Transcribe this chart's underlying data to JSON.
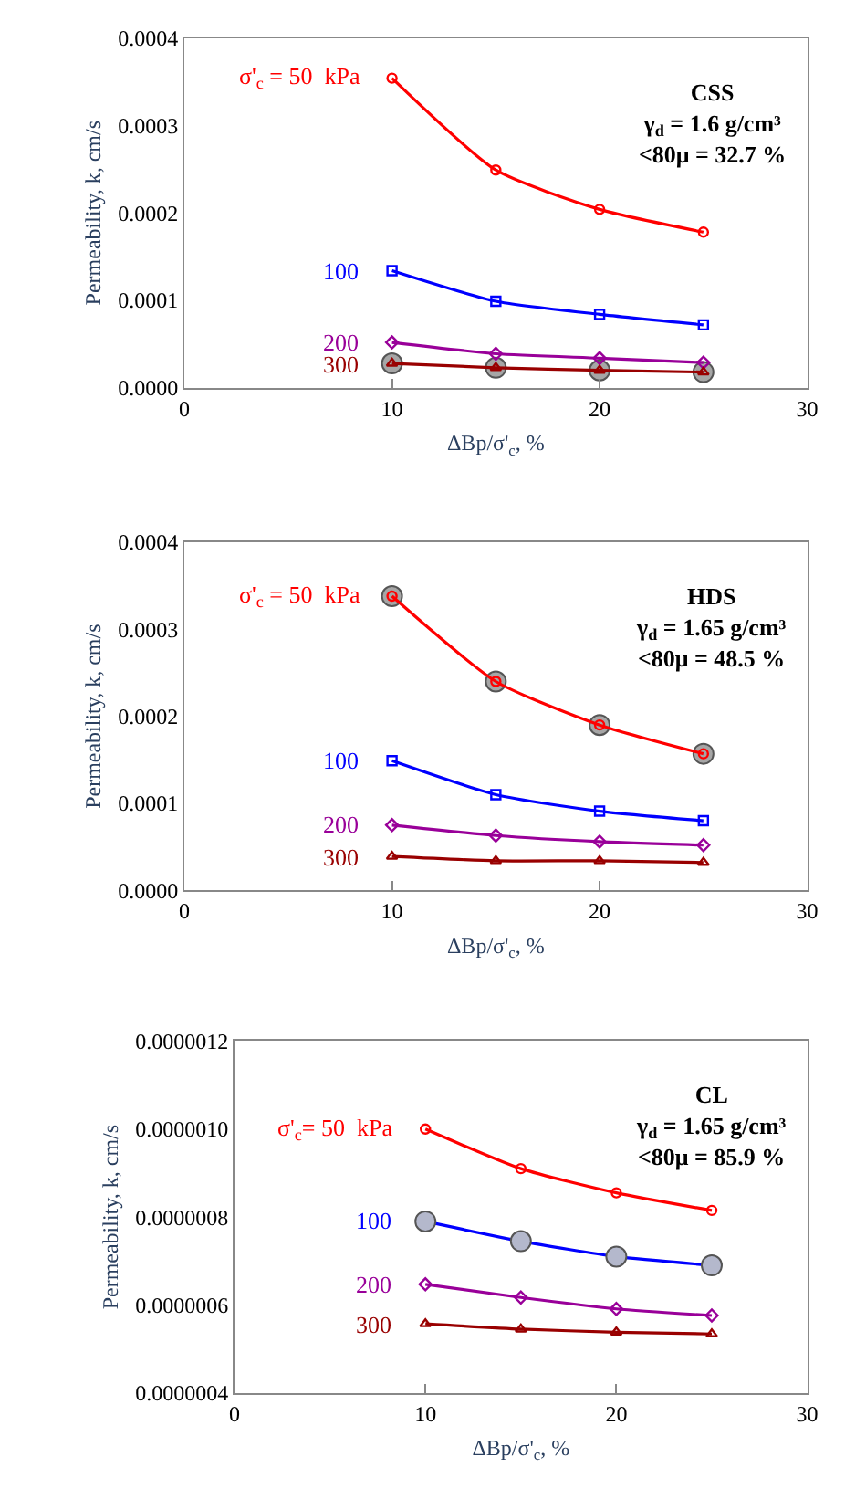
{
  "chart_data": [
    {
      "type": "line",
      "title": "CSS",
      "annotations": [
        "γ$_{d}$ = 1.6 g/cm³",
        "<80μ = 32.7 %"
      ],
      "xlabel": "ΔBp/σ'$_{c}$, %",
      "ylabel": "Permeability, k, cm/s",
      "x": [
        10,
        15,
        20,
        25
      ],
      "xlim": [
        0,
        30
      ],
      "xticks": [
        0,
        10,
        20,
        30
      ],
      "ylim": [
        0,
        0.0004
      ],
      "yticks": [
        {
          "value": 0,
          "label": "0.0000"
        },
        {
          "value": 0.0001,
          "label": "0.0001"
        },
        {
          "value": 0.0002,
          "label": "0.0002"
        },
        {
          "value": 0.0003,
          "label": "0.0003"
        },
        {
          "value": 0.0004,
          "label": "0.0004"
        }
      ],
      "legend": "left",
      "series": [
        {
          "name": "σ'$_{c}$ = 50  kPa",
          "color": "#ff0000",
          "marker": "circle",
          "values": [
            0.000354,
            0.000249,
            0.000204,
            0.000178
          ]
        },
        {
          "name": "100",
          "color": "#0000ff",
          "marker": "square",
          "values": [
            0.000134,
            9.9e-05,
            8.4e-05,
            7.2e-05
          ]
        },
        {
          "type": "scatter",
          "color": "#a6a6a6",
          "marker": "circle",
          "values": [
            2.8e-05,
            2.3e-05,
            2e-05,
            1.8e-05
          ]
        },
        {
          "name": "200",
          "color": "#990099",
          "marker": "diamond",
          "values": [
            5.2e-05,
            3.9e-05,
            3.4e-05,
            2.9e-05
          ]
        },
        {
          "name": "300",
          "color": "#990000",
          "marker": "triangle",
          "values": [
            2.8e-05,
            2.3e-05,
            2e-05,
            1.8e-05
          ]
        }
      ]
    },
    {
      "type": "line",
      "title": "HDS",
      "annotations": [
        "γ$_{d}$ = 1.65 g/cm³",
        "<80μ = 48.5 %"
      ],
      "xlabel": "ΔBp/σ'$_{c}$, %",
      "ylabel": "Permeability, k, cm/s",
      "x": [
        10,
        15,
        20,
        25
      ],
      "xlim": [
        0,
        30
      ],
      "xticks": [
        0,
        10,
        20,
        30
      ],
      "ylim": [
        0,
        0.0004
      ],
      "yticks": [
        {
          "value": 0,
          "label": "0.0000"
        },
        {
          "value": 0.0001,
          "label": "0.0001"
        },
        {
          "value": 0.0002,
          "label": "0.0002"
        },
        {
          "value": 0.0003,
          "label": "0.0003"
        },
        {
          "value": 0.0004,
          "label": "0.0004"
        }
      ],
      "legend": "left",
      "series": [
        {
          "type": "scatter",
          "color": "#a6a6a6",
          "marker": "circle",
          "values": [
            0.000338,
            0.00024,
            0.00019,
            0.000157
          ]
        },
        {
          "name": "σ'$_{c}$ = 50  kPa",
          "color": "#ff0000",
          "marker": "circle",
          "values": [
            0.000338,
            0.00024,
            0.00019,
            0.000157
          ]
        },
        {
          "name": "100",
          "color": "#0000ff",
          "marker": "square",
          "values": [
            0.000149,
            0.00011,
            9.1e-05,
            8e-05
          ]
        },
        {
          "name": "200",
          "color": "#990099",
          "marker": "diamond",
          "values": [
            7.5e-05,
            6.3e-05,
            5.6e-05,
            5.2e-05
          ]
        },
        {
          "name": "300",
          "color": "#990000",
          "marker": "triangle",
          "values": [
            3.9e-05,
            3.4e-05,
            3.4e-05,
            3.2e-05
          ]
        }
      ]
    },
    {
      "type": "line",
      "title": "CL",
      "annotations": [
        "γ$_{d}$ = 1.65 g/cm³",
        "<80μ = 85.9 %"
      ],
      "xlabel": "ΔBp/σ'$_{c}$, %",
      "ylabel": "Permeability, k, cm/s",
      "x": [
        10,
        15,
        20,
        25
      ],
      "xlim": [
        0,
        30
      ],
      "xticks": [
        0,
        10,
        20,
        30
      ],
      "ylim": [
        4e-07,
        1.2e-06
      ],
      "yticks": [
        {
          "value": 4e-07,
          "label": "0.0000004"
        },
        {
          "value": 6e-07,
          "label": "0.0000006"
        },
        {
          "value": 8e-07,
          "label": "0.0000008"
        },
        {
          "value": 1e-06,
          "label": "0.0000010"
        },
        {
          "value": 1.2e-06,
          "label": "0.0000012"
        }
      ],
      "legend": "left",
      "series": [
        {
          "name": "σ'$_{c}$= 50  kPa",
          "color": "#ff0000",
          "marker": "circle",
          "values": [
            1e-06,
            9.1e-07,
            8.55e-07,
            8.15e-07
          ]
        },
        {
          "name": "100",
          "color": "#0000ff",
          "marker": "square",
          "values": [
            7.9e-07,
            7.45e-07,
            7.1e-07,
            6.9e-07
          ]
        },
        {
          "type": "scatter",
          "color": "#b4b8cc",
          "marker": "circle",
          "values": [
            7.9e-07,
            7.45e-07,
            7.1e-07,
            6.9e-07
          ]
        },
        {
          "name": "200",
          "color": "#990099",
          "marker": "diamond",
          "values": [
            6.47e-07,
            6.17e-07,
            5.91e-07,
            5.76e-07
          ]
        },
        {
          "name": "300",
          "color": "#990000",
          "marker": "triangle",
          "values": [
            5.57e-07,
            5.45e-07,
            5.38e-07,
            5.34e-07
          ]
        }
      ]
    }
  ]
}
